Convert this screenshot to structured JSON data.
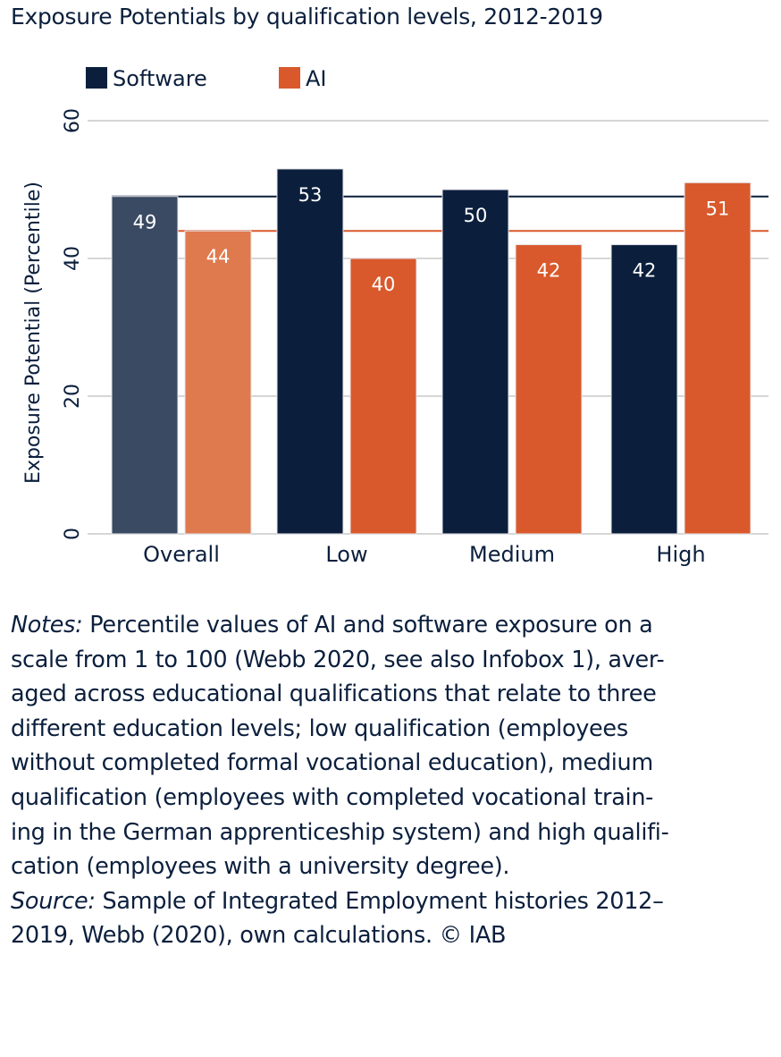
{
  "chart_data": {
    "type": "bar",
    "title": "Exposure Potentials by qualification levels, 2012-2019",
    "ylabel": "Exposure Potential (Percentile)",
    "xlabel": "",
    "ylim": [
      0,
      60
    ],
    "yticks": [
      0,
      20,
      40,
      60
    ],
    "grid": true,
    "legend_position": "top-left",
    "categories": [
      "Overall",
      "Low",
      "Medium",
      "High"
    ],
    "series": [
      {
        "name": "Software",
        "values": [
          49,
          53,
          50,
          42
        ],
        "color": "#0b1f3d",
        "overall_color": "#3b4a63"
      },
      {
        "name": "AI",
        "values": [
          44,
          40,
          42,
          51
        ],
        "color": "#d9592c",
        "overall_color": "#df7a4e"
      }
    ],
    "reference_lines": [
      {
        "series": "Software",
        "value": 49
      },
      {
        "series": "AI",
        "value": 44
      }
    ]
  },
  "notes": {
    "notes_label": "Notes:",
    "lines": [
      " Percentile values of AI and software exposure on a",
      "scale from 1 to 100 (Webb 2020, see also Infobox 1), aver-",
      "aged across educational qualifications that relate to three",
      "different education levels; low qualification (employees",
      "without completed formal vocational education), medium",
      "qualification (employees with completed vocational train-",
      "ing in the German apprenticeship system) and high qualifi-",
      "cation (employees with a university degree)."
    ],
    "source_label": "Source:",
    "source_lines": [
      " Sample of Integrated Employment histories 2012–",
      "2019, Webb (2020), own calculations. © IAB"
    ]
  }
}
